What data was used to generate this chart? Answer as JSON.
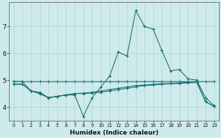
{
  "xlabel": "Humidex (Indice chaleur)",
  "ylabel": "",
  "background_color": "#ceeaea",
  "grid_color": "#a8d4d4",
  "line_color": "#1a7070",
  "xlim": [
    -0.5,
    23.5
  ],
  "ylim": [
    3.5,
    7.9
  ],
  "xticks": [
    0,
    1,
    2,
    3,
    4,
    5,
    6,
    7,
    8,
    9,
    10,
    11,
    12,
    13,
    14,
    15,
    16,
    17,
    18,
    19,
    20,
    21,
    22,
    23
  ],
  "yticks": [
    4,
    5,
    6,
    7
  ],
  "line1_x": [
    0,
    1,
    2,
    3,
    4,
    5,
    6,
    7,
    8,
    9,
    10,
    11,
    12,
    13,
    14,
    15,
    16,
    17,
    18,
    19,
    20,
    21,
    22,
    23
  ],
  "line1_y": [
    4.95,
    4.95,
    4.6,
    4.55,
    4.35,
    4.4,
    4.45,
    4.45,
    3.65,
    4.35,
    4.75,
    5.15,
    6.05,
    5.9,
    7.6,
    7.0,
    6.9,
    6.1,
    5.35,
    5.4,
    5.05,
    5.0,
    4.35,
    4.05
  ],
  "line2_x": [
    0,
    1,
    2,
    3,
    4,
    5,
    6,
    7,
    8,
    9,
    10,
    11,
    12,
    13,
    14,
    15,
    16,
    17,
    18,
    19,
    20,
    21,
    22,
    23
  ],
  "line2_y": [
    4.95,
    4.95,
    4.95,
    4.95,
    4.95,
    4.95,
    4.95,
    4.95,
    4.95,
    4.95,
    4.95,
    4.95,
    4.95,
    4.95,
    4.95,
    4.95,
    4.95,
    4.95,
    4.95,
    4.95,
    4.95,
    4.95,
    4.95,
    4.95
  ],
  "line3_x": [
    0,
    1,
    2,
    3,
    4,
    5,
    6,
    7,
    8,
    9,
    10,
    11,
    12,
    13,
    14,
    15,
    16,
    17,
    18,
    19,
    20,
    21,
    22,
    23
  ],
  "line3_y": [
    4.85,
    4.85,
    4.6,
    4.5,
    4.35,
    4.4,
    4.45,
    4.5,
    4.5,
    4.52,
    4.55,
    4.6,
    4.65,
    4.7,
    4.75,
    4.8,
    4.82,
    4.85,
    4.87,
    4.88,
    4.9,
    4.92,
    4.2,
    4.02
  ],
  "line4_x": [
    0,
    1,
    2,
    3,
    4,
    5,
    6,
    7,
    8,
    9,
    10,
    11,
    12,
    13,
    14,
    15,
    16,
    17,
    18,
    19,
    20,
    21,
    22,
    23
  ],
  "line4_y": [
    4.85,
    4.85,
    4.6,
    4.5,
    4.35,
    4.4,
    4.45,
    4.5,
    4.52,
    4.55,
    4.6,
    4.65,
    4.7,
    4.75,
    4.8,
    4.82,
    4.85,
    4.87,
    4.88,
    4.9,
    4.92,
    4.95,
    4.2,
    4.02
  ]
}
